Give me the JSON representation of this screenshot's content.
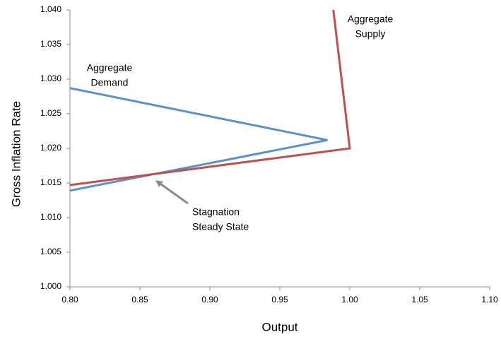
{
  "chart_data": {
    "type": "line",
    "x_label": "Output",
    "y_label": "Gross Inflation Rate",
    "xlim": [
      0.8,
      1.1
    ],
    "xticks": [
      {
        "value": 0.8,
        "label": "0.80"
      },
      0.85,
      {
        "value": 0.9,
        "label": "0.90"
      },
      0.95,
      {
        "value": 1.0,
        "label": "1.00"
      },
      1.05,
      {
        "value": 1.1,
        "label": "1.10"
      }
    ],
    "ylim": [
      1.0,
      1.04
    ],
    "yticks": [
      {
        "value": 1.0,
        "label": "1.000"
      },
      1.005,
      {
        "value": 1.01,
        "label": "1.010"
      },
      1.015,
      {
        "value": 1.02,
        "label": "1.020"
      },
      1.025,
      {
        "value": 1.03,
        "label": "1.030"
      },
      1.035,
      {
        "value": 1.04,
        "label": "1.040"
      }
    ],
    "grid": false,
    "series": [
      {
        "name": "Aggregate Demand",
        "color": "#5b93c8",
        "x": [
          0.8,
          0.984,
          0.8
        ],
        "values": [
          1.0287,
          1.0212,
          1.0139
        ]
      },
      {
        "name": "Aggregate Supply",
        "color": "#c0504d",
        "x": [
          0.8,
          1.0,
          0.988
        ],
        "values": [
          1.0147,
          1.02,
          1.0404
        ]
      }
    ],
    "annotations": [
      {
        "text": [
          "Aggregate",
          "Demand"
        ]
      },
      {
        "text": [
          "Aggregate",
          "Supply"
        ]
      },
      {
        "text": [
          "Stagnation",
          "Steady State"
        ]
      }
    ]
  }
}
